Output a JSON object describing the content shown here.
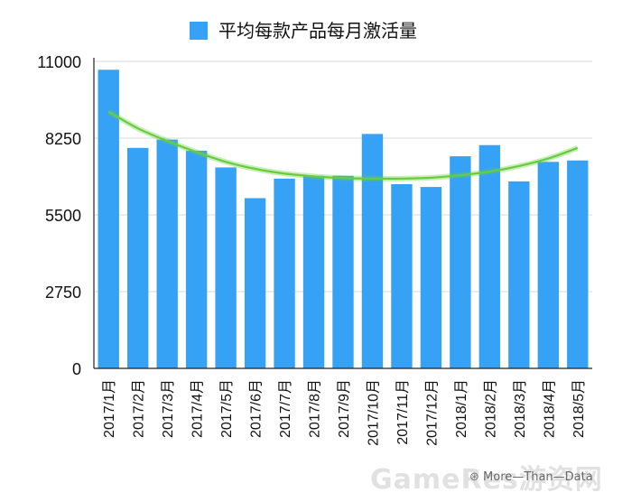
{
  "chart_data": {
    "type": "bar",
    "title": "",
    "xlabel": "",
    "ylabel": "",
    "ylim": [
      0,
      11000
    ],
    "yticks": [
      "0",
      "2750",
      "5500",
      "8250",
      "11000"
    ],
    "grid": true,
    "legend_position": "top-center",
    "categories": [
      "2017/1月",
      "2017/2月",
      "2017/3月",
      "2017/4月",
      "2017/5月",
      "2017/6月",
      "2017/7月",
      "2017/8月",
      "2017/9月",
      "2017/10月",
      "2017/11月",
      "2017/12月",
      "2018/1月",
      "2018/2月",
      "2018/3月",
      "2018/4月",
      "2018/5月"
    ],
    "series": [
      {
        "name": "平均每款产品每月激活量",
        "values": [
          10700,
          7900,
          8200,
          7800,
          7200,
          6100,
          6800,
          6900,
          6900,
          8400,
          6600,
          6500,
          7600,
          8000,
          6700,
          7400,
          7450
        ]
      }
    ],
    "trendline": {
      "type": "polynomial",
      "values": [
        9200,
        8600,
        8150,
        7750,
        7400,
        7150,
        6980,
        6880,
        6820,
        6800,
        6800,
        6830,
        6920,
        7050,
        7250,
        7520,
        7900
      ]
    },
    "colors": {
      "bar": "#36a2f5",
      "trendline": "#67cd3c",
      "gridline": "#d9d9d9",
      "axis": "#222222"
    }
  },
  "watermark": {
    "text1": "GameRes",
    "text2": "游资网",
    "caption": "More—Than—Data"
  }
}
